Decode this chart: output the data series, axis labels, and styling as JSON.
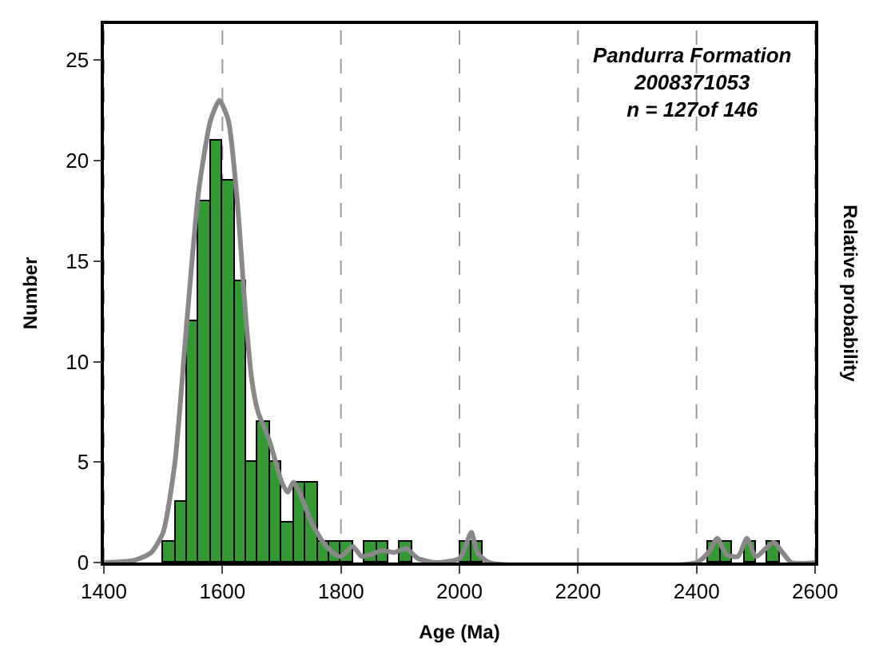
{
  "chart_data": {
    "type": "histogram",
    "xlabel": "Age (Ma)",
    "ylabel": "Number",
    "y2label": "Relative probability",
    "annotations": [
      "Pandurra Formation",
      "2008371053",
      "n = 127of 146"
    ],
    "bins": [
      1500,
      1520,
      1540,
      1560,
      1580,
      1600,
      1620,
      1640,
      1660,
      1680,
      1700,
      1720,
      1740,
      1760,
      1780,
      1800,
      1820,
      1840,
      1860,
      1880,
      1900,
      1920,
      1940,
      1960,
      1980,
      2000,
      2020,
      2040,
      2060,
      2080,
      2100,
      2120,
      2140,
      2160,
      2180,
      2200,
      2220,
      2240,
      2260,
      2280,
      2300,
      2320,
      2340,
      2360,
      2380,
      2400,
      2420,
      2440,
      2460,
      2480,
      2500,
      2520,
      2540
    ],
    "series": [
      {
        "color": "#339933",
        "values": [
          1,
          3,
          12,
          18,
          21,
          19,
          14,
          5,
          7,
          5,
          2,
          4,
          4,
          1,
          1,
          1,
          0,
          1,
          1,
          0,
          1,
          0,
          0,
          0,
          0,
          1,
          1,
          0,
          0,
          0,
          0,
          0,
          0,
          0,
          0,
          0,
          0,
          0,
          0,
          0,
          0,
          0,
          0,
          0,
          0,
          0,
          1,
          1,
          0,
          1,
          0,
          1
        ]
      },
      {
        "type": "line",
        "color": "#888888",
        "x": [
          1400,
          1450,
          1480,
          1500,
          1520,
          1540,
          1560,
          1580,
          1595,
          1610,
          1625,
          1640,
          1650,
          1660,
          1680,
          1700,
          1710,
          1720,
          1730,
          1750,
          1770,
          1790,
          1800,
          1820,
          1835,
          1850,
          1870,
          1890,
          1910,
          1930,
          1960,
          2000,
          2020,
          2030,
          2050,
          2400,
          2420,
          2435,
          2450,
          2470,
          2485,
          2500,
          2530,
          2545,
          2560,
          2600
        ],
        "values": [
          0,
          0.1,
          0.5,
          1.5,
          5,
          12,
          18.5,
          22,
          23,
          22,
          18,
          12,
          9,
          7.5,
          6,
          4,
          3.5,
          4,
          3.5,
          2,
          1,
          0.4,
          0.3,
          0.8,
          0.3,
          0.4,
          0.6,
          0.5,
          0.7,
          0.2,
          0,
          0.2,
          1.5,
          0.5,
          0,
          0,
          0.5,
          1.2,
          0.4,
          0.3,
          1.2,
          0.3,
          1,
          0.5,
          0,
          0
        ]
      }
    ],
    "xlim": [
      1400,
      2600
    ],
    "xticks": [
      1400,
      1600,
      1800,
      2000,
      2200,
      2400,
      2600
    ],
    "ylim": [
      0,
      26.8
    ],
    "yticks": [
      0,
      5,
      10,
      15,
      20,
      25
    ],
    "grid": "x"
  }
}
